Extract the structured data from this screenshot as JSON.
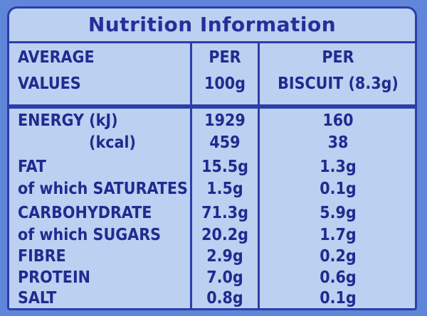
{
  "title": "Nutrition Information",
  "header": {
    "col1": [
      "AVERAGE",
      "VALUES"
    ],
    "col2": [
      "PER",
      "100g"
    ],
    "col3": [
      "PER",
      "BISCUIT (8.3g)"
    ]
  },
  "rows": [
    {
      "label": "ENERGY (kJ)",
      "per100": "1929",
      "perBiscuit": "160"
    },
    {
      "label": "(kcal)",
      "per100": "459",
      "perBiscuit": "38"
    },
    {
      "label": "FAT",
      "per100": "15.5g",
      "perBiscuit": "1.3g"
    },
    {
      "label": "of which SATURATES",
      "per100": "1.5g",
      "perBiscuit": "0.1g"
    },
    {
      "label": "CARBOHYDRATE",
      "per100": "71.3g",
      "perBiscuit": "5.9g"
    },
    {
      "label": "of which SUGARS",
      "per100": "20.2g",
      "perBiscuit": "1.7g"
    },
    {
      "label": "FIBRE",
      "per100": "2.9g",
      "perBiscuit": "0.2g"
    },
    {
      "label": "PROTEIN",
      "per100": "7.0g",
      "perBiscuit": "0.6g"
    },
    {
      "label": "SALT",
      "per100": "0.8g",
      "perBiscuit": "0.1g"
    }
  ],
  "colors": {
    "background": "#5f86d9",
    "panel": "#bcd0f1",
    "ink": "#1f2b8f",
    "rule": "#2b3ea8"
  }
}
